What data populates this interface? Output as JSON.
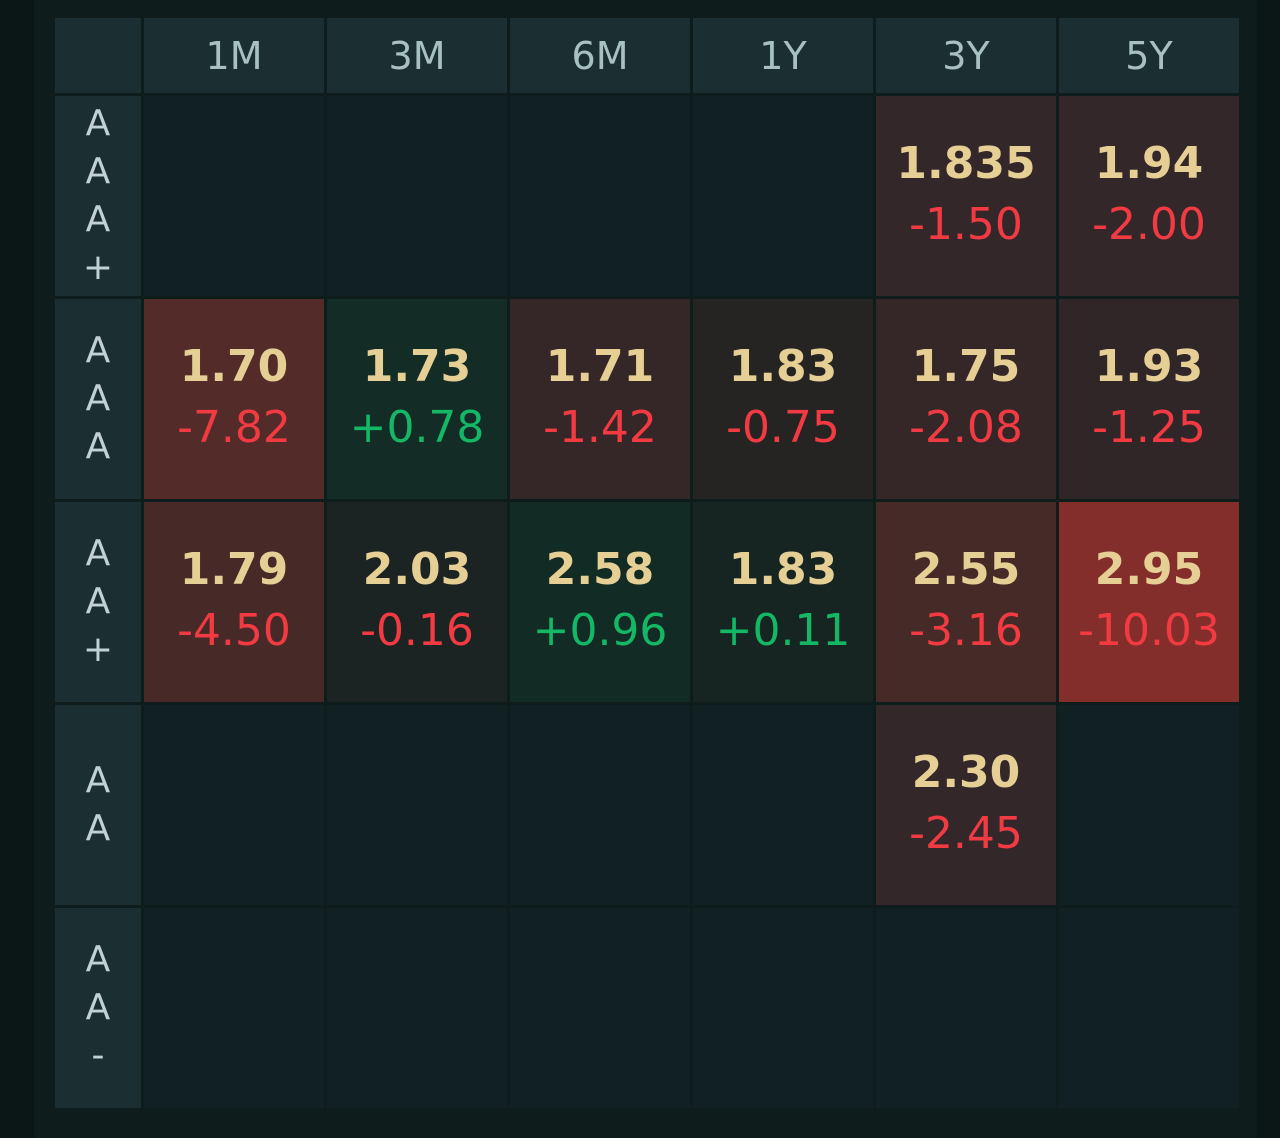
{
  "columns": [
    "1M",
    "3M",
    "6M",
    "1Y",
    "3Y",
    "5Y"
  ],
  "rows": [
    {
      "label": [
        "A",
        "A",
        "A",
        "+"
      ],
      "cells": [
        null,
        null,
        null,
        null,
        {
          "value": "1.835",
          "change": "-1.50",
          "dir": "neg",
          "bg": "#33272a"
        },
        {
          "value": "1.94",
          "change": "-2.00",
          "dir": "neg",
          "bg": "#33272a"
        }
      ]
    },
    {
      "label": [
        "A",
        "A",
        "A"
      ],
      "cells": [
        {
          "value": "1.70",
          "change": "-7.82",
          "dir": "neg",
          "bg": "#532b29"
        },
        {
          "value": "1.73",
          "change": "+0.78",
          "dir": "pos",
          "bg": "#132c25"
        },
        {
          "value": "1.71",
          "change": "-1.42",
          "dir": "neg",
          "bg": "#352727"
        },
        {
          "value": "1.83",
          "change": "-0.75",
          "dir": "neg",
          "bg": "#252423"
        },
        {
          "value": "1.75",
          "change": "-2.08",
          "dir": "neg",
          "bg": "#352727"
        },
        {
          "value": "1.93",
          "change": "-1.25",
          "dir": "neg",
          "bg": "#302628"
        }
      ]
    },
    {
      "label": [
        "A",
        "A",
        "+"
      ],
      "cells": [
        {
          "value": "1.79",
          "change": "-4.50",
          "dir": "neg",
          "bg": "#472a28"
        },
        {
          "value": "2.03",
          "change": "-0.16",
          "dir": "neg",
          "bg": "#1b2423"
        },
        {
          "value": "2.58",
          "change": "+0.96",
          "dir": "pos",
          "bg": "#132b25"
        },
        {
          "value": "1.83",
          "change": "+0.11",
          "dir": "pos",
          "bg": "#162422"
        },
        {
          "value": "2.55",
          "change": "-3.16",
          "dir": "neg",
          "bg": "#462a28"
        },
        {
          "value": "2.95",
          "change": "-10.03",
          "dir": "neg",
          "bg": "#842e2b"
        }
      ]
    },
    {
      "label": [
        "A",
        "A"
      ],
      "cells": [
        null,
        null,
        null,
        null,
        {
          "value": "2.30",
          "change": "-2.45",
          "dir": "neg",
          "bg": "#33272a"
        },
        null
      ]
    },
    {
      "label": [
        "A",
        "A",
        "-"
      ],
      "cells": [
        null,
        null,
        null,
        null,
        null,
        null
      ]
    }
  ]
}
